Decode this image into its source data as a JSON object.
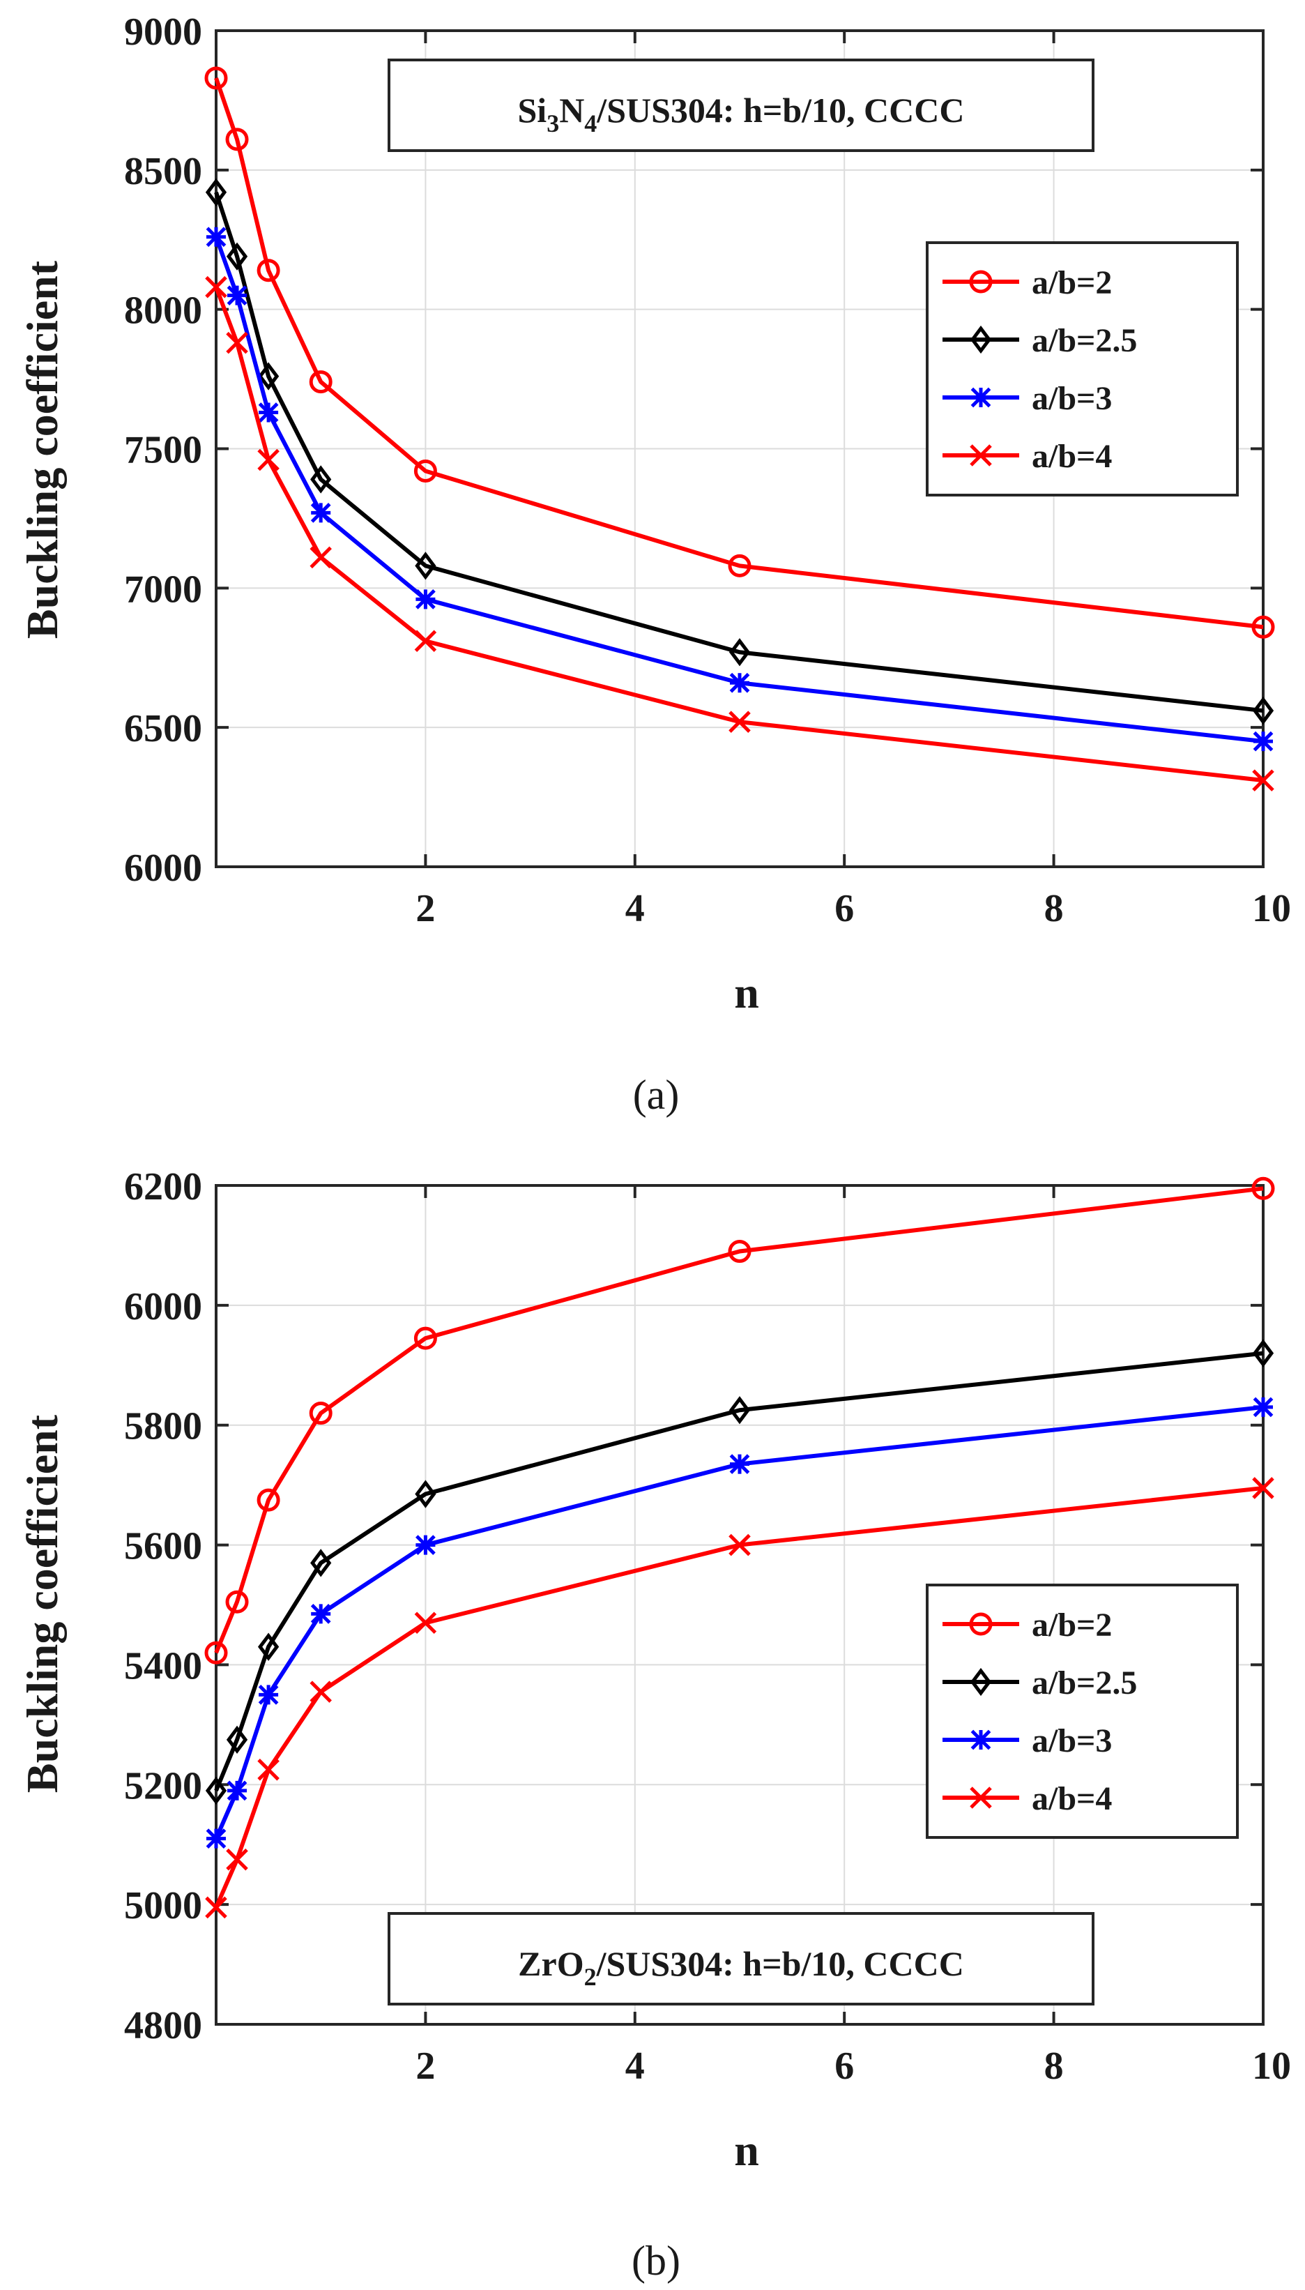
{
  "chart_data": [
    {
      "type": "line",
      "panel": "a",
      "caption": "(a)",
      "xlabel": "n",
      "ylabel": "Buckling coefficient",
      "xlim": [
        0,
        10
      ],
      "ylim": [
        6000,
        9000
      ],
      "xticks": [
        2,
        4,
        6,
        8,
        10
      ],
      "yticks": [
        6000,
        6500,
        7000,
        7500,
        8000,
        8500,
        9000
      ],
      "grid": true,
      "legend_position": "top-right",
      "annotation": {
        "main": "Si",
        "sub1": "3",
        "mid": "N",
        "sub2": "4",
        "rest": "/SUS304: h=b/10, CCCC"
      },
      "x": [
        0,
        0.2,
        0.5,
        1,
        2,
        5,
        10
      ],
      "series": [
        {
          "name": "a/b=2",
          "color": "#ff0000",
          "marker": "circle",
          "values": [
            8830,
            8610,
            8140,
            7740,
            7420,
            7080,
            6860
          ]
        },
        {
          "name": "a/b=2.5",
          "color": "#000000",
          "marker": "diamond",
          "values": [
            8420,
            8190,
            7760,
            7390,
            7080,
            6770,
            6560
          ]
        },
        {
          "name": "a/b=3",
          "color": "#0000ff",
          "marker": "asterisk",
          "values": [
            8260,
            8050,
            7630,
            7270,
            6960,
            6660,
            6450
          ]
        },
        {
          "name": "a/b=4",
          "color": "#ff0000",
          "marker": "x",
          "values": [
            8080,
            7880,
            7460,
            7110,
            6810,
            6520,
            6310
          ]
        }
      ]
    },
    {
      "type": "line",
      "panel": "b",
      "caption": "(b)",
      "xlabel": "n",
      "ylabel": "Buckling coefficient",
      "xlim": [
        0,
        10
      ],
      "ylim": [
        4800,
        6200
      ],
      "xticks": [
        2,
        4,
        6,
        8,
        10
      ],
      "yticks": [
        4800,
        5000,
        5200,
        5400,
        5600,
        5800,
        6000,
        6200
      ],
      "grid": true,
      "legend_position": "center-right",
      "annotation": {
        "main": "ZrO",
        "sub1": "2",
        "rest": "/SUS304: h=b/10, CCCC"
      },
      "x": [
        0,
        0.2,
        0.5,
        1,
        2,
        5,
        10
      ],
      "series": [
        {
          "name": "a/b=2",
          "color": "#ff0000",
          "marker": "circle",
          "values": [
            5420,
            5505,
            5675,
            5820,
            5945,
            6090,
            6195
          ]
        },
        {
          "name": "a/b=2.5",
          "color": "#000000",
          "marker": "diamond",
          "values": [
            5190,
            5275,
            5430,
            5570,
            5685,
            5825,
            5920
          ]
        },
        {
          "name": "a/b=3",
          "color": "#0000ff",
          "marker": "asterisk",
          "values": [
            5110,
            5190,
            5350,
            5485,
            5600,
            5735,
            5830
          ]
        },
        {
          "name": "a/b=4",
          "color": "#ff0000",
          "marker": "x",
          "values": [
            4995,
            5075,
            5225,
            5355,
            5470,
            5600,
            5695
          ]
        }
      ]
    }
  ]
}
